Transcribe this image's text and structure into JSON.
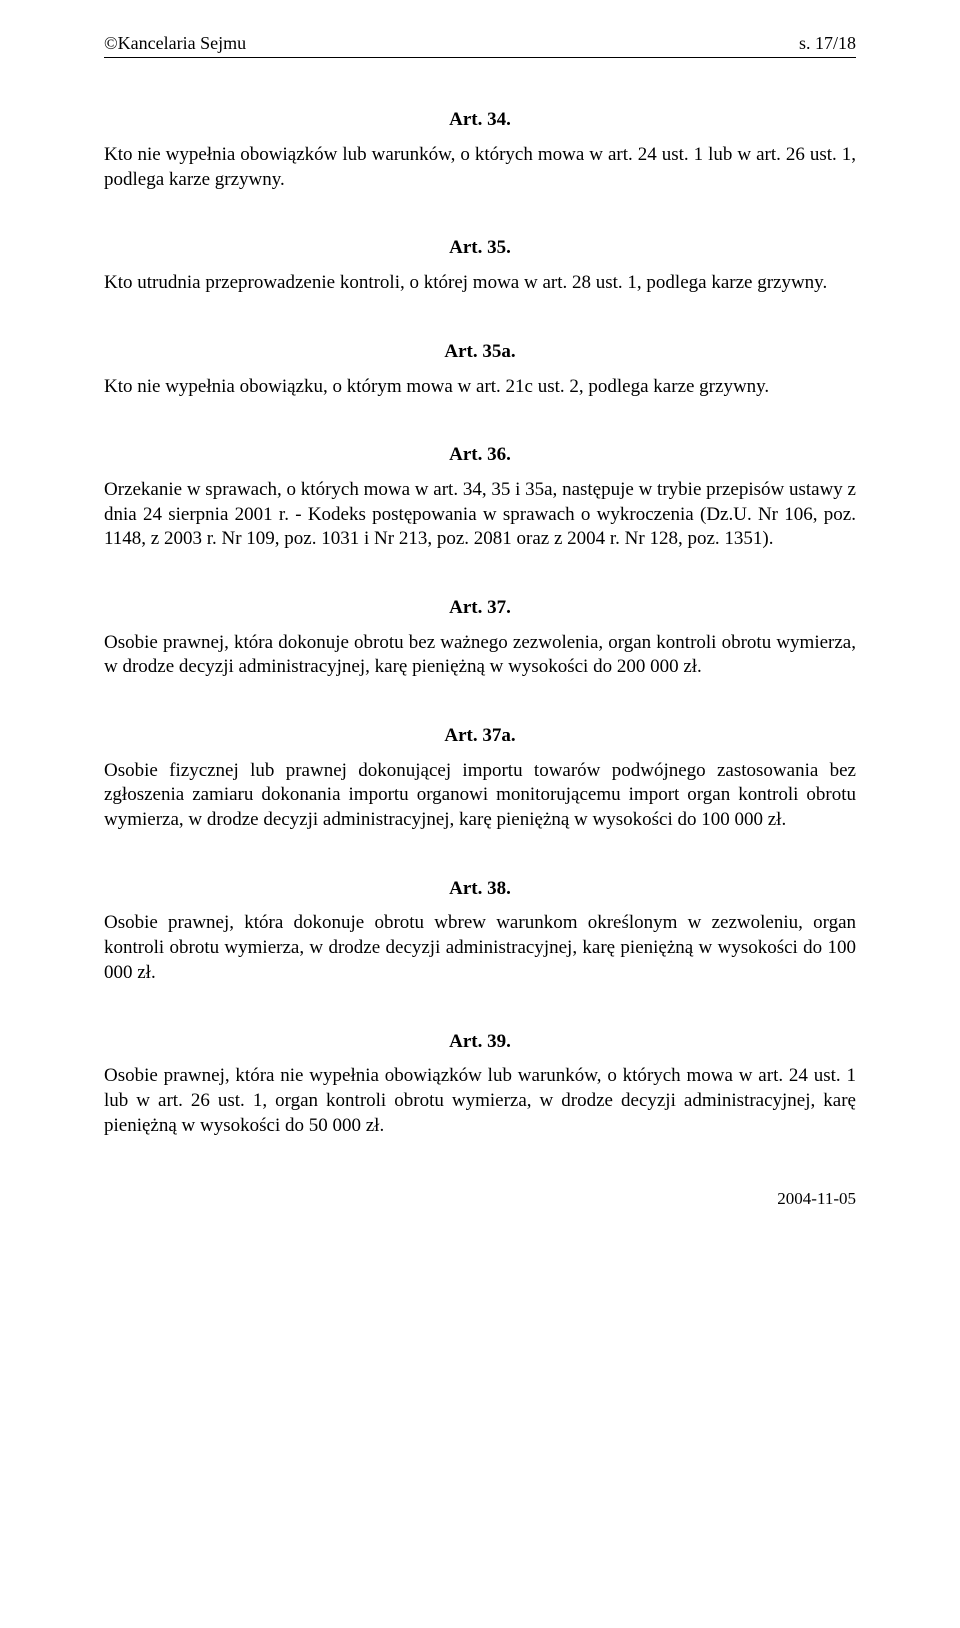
{
  "header": {
    "left": "©Kancelaria Sejmu",
    "right": "s. 17/18"
  },
  "articles": {
    "a34": {
      "heading": "Art. 34.",
      "body": "Kto nie wypełnia obowiązków lub warunków, o których mowa w art. 24 ust. 1 lub w art. 26 ust. 1, podlega karze grzywny."
    },
    "a35": {
      "heading": "Art. 35.",
      "body": "Kto utrudnia przeprowadzenie kontroli, o której mowa w art. 28 ust. 1, podlega karze grzywny."
    },
    "a35a": {
      "heading": "Art. 35a.",
      "body": "Kto nie wypełnia obowiązku, o którym mowa w art. 21c ust. 2, podlega karze grzywny."
    },
    "a36": {
      "heading": "Art. 36.",
      "body": "Orzekanie w sprawach, o których mowa w art. 34, 35 i 35a, następuje w trybie przepisów ustawy z dnia 24 sierpnia 2001 r. - Kodeks postępowania w sprawach o wykroczenia (Dz.U. Nr 106, poz. 1148, z 2003 r. Nr 109, poz. 1031 i Nr 213, poz. 2081 oraz z 2004 r. Nr 128, poz. 1351)."
    },
    "a37": {
      "heading": "Art. 37.",
      "body": "Osobie prawnej, która dokonuje obrotu bez ważnego zezwolenia, organ kontroli obrotu wymierza, w drodze decyzji administracyjnej, karę pieniężną w wysokości do 200 000 zł."
    },
    "a37a": {
      "heading": "Art. 37a.",
      "body": "Osobie fizycznej lub prawnej dokonującej importu towarów podwójnego zastosowania bez zgłoszenia zamiaru dokonania importu organowi monitorującemu import organ kontroli obrotu wymierza, w drodze decyzji administracyjnej, karę pieniężną w wysokości do 100 000 zł."
    },
    "a38": {
      "heading": "Art. 38.",
      "body": "Osobie prawnej, która dokonuje obrotu wbrew warunkom określonym w zezwoleniu, organ kontroli obrotu wymierza, w drodze decyzji administracyjnej, karę pieniężną w wysokości do 100 000 zł."
    },
    "a39": {
      "heading": "Art. 39.",
      "body": "Osobie prawnej, która nie wypełnia obowiązków lub warunków, o których mowa w art. 24 ust. 1 lub w art. 26 ust. 1, organ kontroli obrotu wymierza, w drodze decyzji administracyjnej, karę pieniężną w wysokości do 50 000 zł."
    }
  },
  "footer": {
    "date": "2004-11-05"
  }
}
